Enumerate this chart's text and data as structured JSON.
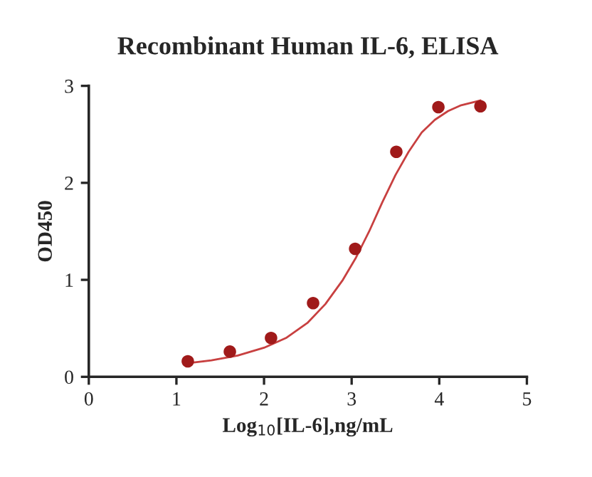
{
  "chart_data": {
    "type": "scatter",
    "title": "Recombinant Human IL-6, ELISA",
    "xlabel": "Log$_{10}$[IL-6],ng/mL",
    "ylabel": "OD450",
    "xlim": [
      0,
      5
    ],
    "ylim": [
      0,
      3
    ],
    "xticks": [
      0,
      1,
      2,
      3,
      4,
      5
    ],
    "yticks": [
      0,
      1,
      2,
      3
    ],
    "grid": false,
    "legend": false,
    "series": [
      {
        "marker": "circle",
        "color": "#a01a1a",
        "x": [
          1.13,
          1.61,
          2.08,
          2.56,
          3.04,
          3.51,
          3.99,
          4.47
        ],
        "values": [
          0.16,
          0.26,
          0.4,
          0.76,
          1.32,
          2.32,
          2.78,
          2.79
        ]
      },
      {
        "type": "line",
        "marker": "none",
        "color": "#c84040",
        "line_style": "solid",
        "x": [
          1.13,
          1.4,
          1.7,
          2.0,
          2.25,
          2.5,
          2.7,
          2.9,
          3.05,
          3.2,
          3.35,
          3.5,
          3.65,
          3.8,
          3.95,
          4.1,
          4.25,
          4.47
        ],
        "values": [
          0.14,
          0.17,
          0.22,
          0.3,
          0.4,
          0.56,
          0.75,
          1.0,
          1.23,
          1.5,
          1.8,
          2.08,
          2.32,
          2.52,
          2.65,
          2.74,
          2.8,
          2.85
        ]
      }
    ]
  }
}
